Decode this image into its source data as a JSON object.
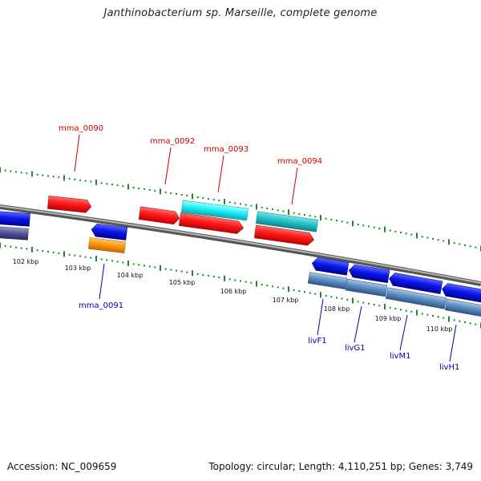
{
  "title": "Janthinobacterium sp. Marseille, complete genome",
  "footer": {
    "accession": "Accession: NC_009659",
    "topology": "Topology: circular; Length: 4,110,251 bp; Genes: 3,749"
  },
  "colors": {
    "backbone": "#8f8f8f",
    "tick": "#1d8a1d",
    "label_red": "#cc0000",
    "label_blue": "#0000b0",
    "gene_red": "#ff1a1a",
    "gene_blue": "#0b17ee",
    "gene_cyan": "#22f0f8",
    "gene_teal": "#22c6c9",
    "gene_orange": "#ff9a10",
    "gene_steel": "#5f8fc4",
    "gene_slate": "#555599"
  },
  "scale": {
    "unit": "kbp",
    "labels": [
      "102 kbp",
      "103 kbp",
      "104 kbp",
      "105 kbp",
      "106 kbp",
      "107 kbp",
      "108 kbp",
      "109 kbp",
      "110 kbp"
    ]
  },
  "gene_labels": [
    "mma_0090",
    "mma_0091",
    "mma_0092",
    "mma_0093",
    "mma_0094",
    "livF1",
    "livG1",
    "livM1",
    "livH1"
  ]
}
